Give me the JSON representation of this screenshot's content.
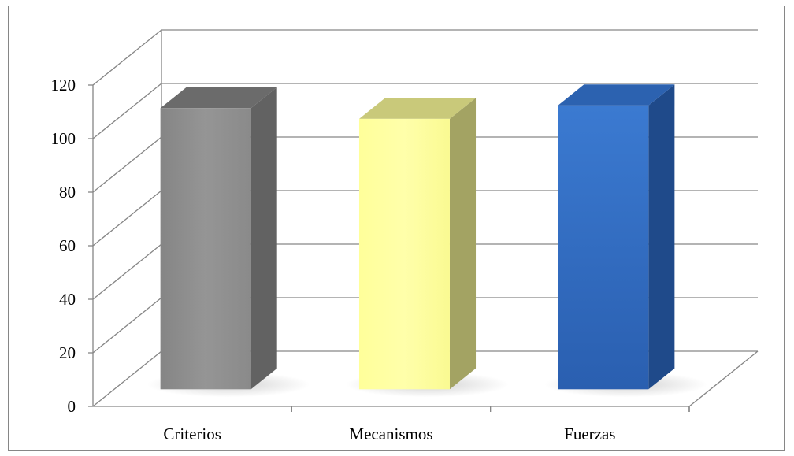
{
  "chart_data": {
    "type": "bar",
    "title": "",
    "xlabel": "",
    "ylabel": "",
    "categories": [
      "Criterios",
      "Mecanismos",
      "Fuerzas"
    ],
    "values": [
      105,
      101,
      106
    ],
    "colors": [
      "#8c8c8c",
      "#ffff99",
      "#2f6fc4"
    ],
    "ylim": [
      0,
      120
    ],
    "yticks": [
      "0",
      "20",
      "40",
      "60",
      "80",
      "100",
      "120"
    ],
    "grid": true,
    "legend": "none",
    "style": "3d-column"
  }
}
